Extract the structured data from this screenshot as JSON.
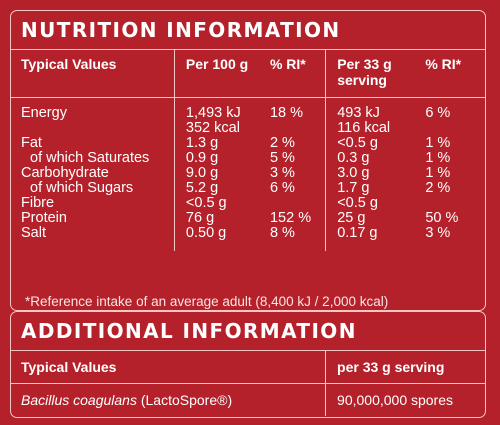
{
  "nutrition": {
    "title": "NUTRITION INFORMATION",
    "headers": {
      "typical": "Typical Values",
      "per100": "Per 100 g",
      "ri100": "% RI*",
      "per33_line1": "Per 33 g",
      "per33_line2": "serving",
      "ri33": "% RI*"
    },
    "rows": [
      {
        "label": "Energy",
        "p100": "1,493 kJ",
        "ri100": "18 %",
        "p33": "493 kJ",
        "ri33": "6 %"
      },
      {
        "label": "",
        "p100": "352 kcal",
        "ri100": "",
        "p33": "116 kcal",
        "ri33": ""
      },
      {
        "label": "Fat",
        "p100": "1.3 g",
        "ri100": "2 %",
        "p33": "<0.5 g",
        "ri33": "1 %"
      },
      {
        "label": "of which Saturates",
        "p100": "0.9 g",
        "ri100": "5 %",
        "p33": "0.3 g",
        "ri33": "1 %"
      },
      {
        "label": "Carbohydrate",
        "p100": "9.0 g",
        "ri100": "3 %",
        "p33": "3.0 g",
        "ri33": "1 %"
      },
      {
        "label": "of which Sugars",
        "p100": "5.2 g",
        "ri100": "6 %",
        "p33": "1.7 g",
        "ri33": "2 %"
      },
      {
        "label": "Fibre",
        "p100": "<0.5 g",
        "ri100": "",
        "p33": "<0.5 g",
        "ri33": ""
      },
      {
        "label": "Protein",
        "p100": "76 g",
        "ri100": "152 %",
        "p33": "25 g",
        "ri33": "50 %"
      },
      {
        "label": "Salt",
        "p100": "0.50 g",
        "ri100": "8 %",
        "p33": "0.17 g",
        "ri33": "3 %"
      }
    ],
    "footnote": "*Reference intake of an average adult (8,400 kJ / 2,000 kcal)"
  },
  "additional": {
    "title": "ADDITIONAL INFORMATION",
    "header_typical": "Typical Values",
    "header_serving": "per 33 g serving",
    "item_italic": "Bacillus coagulans",
    "item_rest": " (LactoSpore®)",
    "item_value": "90,000,000 spores"
  }
}
